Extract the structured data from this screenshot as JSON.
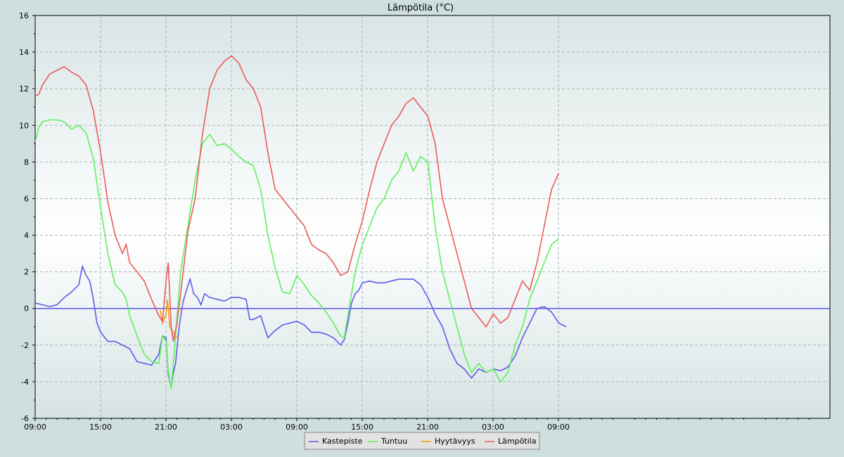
{
  "chart_data": {
    "type": "line",
    "title": "Lämpötila (°C)",
    "xlabel": "",
    "ylabel": "",
    "ylim": [
      -6,
      16
    ],
    "y_ticks": [
      -6,
      -4,
      -2,
      0,
      2,
      4,
      6,
      8,
      10,
      12,
      14,
      16
    ],
    "x_range_hours": [
      0,
      48.7
    ],
    "x_tick_labels": [
      {
        "hour": 0,
        "label": "09:00"
      },
      {
        "hour": 6,
        "label": "15:00"
      },
      {
        "hour": 12,
        "label": "21:00"
      },
      {
        "hour": 18,
        "label": "03:00"
      },
      {
        "hour": 24,
        "label": "09:00"
      },
      {
        "hour": 30,
        "label": "15:00"
      },
      {
        "hour": 36,
        "label": "21:00"
      },
      {
        "hour": 42,
        "label": "03:00"
      },
      {
        "hour": 48,
        "label": "09:00"
      }
    ],
    "grid": true,
    "reference_line": {
      "y": 0,
      "color": "#5555ee"
    },
    "legend_position": "bottom-center",
    "series": [
      {
        "name": "Kastepiste",
        "color": "#5b5bea",
        "points": [
          [
            0,
            0.3
          ],
          [
            1,
            0.2
          ],
          [
            2,
            0.1
          ],
          [
            3,
            0.2
          ],
          [
            4,
            0.6
          ],
          [
            5,
            0.9
          ],
          [
            6,
            1.3
          ],
          [
            6.5,
            2.3
          ],
          [
            7,
            1.8
          ],
          [
            7.5,
            1.5
          ],
          [
            8,
            0.5
          ],
          [
            8.5,
            -0.8
          ],
          [
            9,
            -1.3
          ],
          [
            10,
            -1.8
          ],
          [
            11,
            -1.8
          ],
          [
            12,
            -2.0
          ],
          [
            13,
            -2.2
          ],
          [
            14,
            -2.9
          ],
          [
            15,
            -3.0
          ],
          [
            16,
            -3.1
          ],
          [
            17,
            -2.5
          ],
          [
            17.5,
            -1.5
          ],
          [
            18,
            -1.6
          ],
          [
            18.3,
            -3.6
          ],
          [
            18.7,
            -4.3
          ],
          [
            19,
            -3.5
          ],
          [
            19.3,
            -3.0
          ],
          [
            19.8,
            -1.0
          ],
          [
            20.3,
            0.3
          ],
          [
            20.8,
            1.0
          ],
          [
            21.3,
            1.6
          ],
          [
            21.8,
            0.8
          ],
          [
            22.3,
            0.6
          ],
          [
            22.8,
            0.2
          ],
          [
            23.3,
            0.8
          ],
          [
            24,
            0.6
          ],
          [
            25,
            0.5
          ],
          [
            26,
            0.4
          ],
          [
            27,
            0.6
          ],
          [
            28,
            0.6
          ],
          [
            29,
            0.5
          ],
          [
            29.5,
            -0.6
          ],
          [
            30,
            -0.6
          ],
          [
            31,
            -0.4
          ],
          [
            32,
            -1.6
          ],
          [
            33,
            -1.2
          ],
          [
            34,
            -0.9
          ],
          [
            35,
            -0.8
          ],
          [
            36,
            -0.7
          ],
          [
            37,
            -0.9
          ],
          [
            38,
            -1.3
          ],
          [
            39,
            -1.3
          ],
          [
            40,
            -1.4
          ],
          [
            41,
            -1.6
          ],
          [
            42,
            -2.0
          ],
          [
            42.5,
            -1.7
          ],
          [
            43,
            -0.8
          ],
          [
            43.5,
            0.3
          ],
          [
            44,
            0.8
          ],
          [
            44.5,
            1.0
          ],
          [
            45,
            1.4
          ],
          [
            46,
            1.5
          ],
          [
            47,
            1.4
          ],
          [
            48,
            1.4
          ],
          [
            49,
            1.5
          ],
          [
            50,
            1.6
          ],
          [
            51,
            1.6
          ],
          [
            52,
            1.6
          ],
          [
            53,
            1.3
          ],
          [
            54,
            0.6
          ],
          [
            55,
            -0.3
          ],
          [
            56,
            -1.0
          ],
          [
            57,
            -2.2
          ],
          [
            58,
            -3.0
          ],
          [
            59,
            -3.3
          ],
          [
            60,
            -3.8
          ],
          [
            61,
            -3.3
          ],
          [
            62,
            -3.5
          ],
          [
            63,
            -3.3
          ],
          [
            64,
            -3.4
          ],
          [
            65,
            -3.2
          ],
          [
            66,
            -2.6
          ],
          [
            67,
            -1.6
          ],
          [
            68,
            -0.8
          ],
          [
            69,
            0.0
          ],
          [
            70,
            0.1
          ],
          [
            71,
            -0.2
          ],
          [
            72,
            -0.8
          ],
          [
            73,
            -1.0
          ]
        ]
      },
      {
        "name": "Tuntuu",
        "color": "#5ef05e",
        "points": [
          [
            0,
            9.1
          ],
          [
            0.5,
            9.9
          ],
          [
            1,
            10.2
          ],
          [
            2,
            10.3
          ],
          [
            3,
            10.3
          ],
          [
            4,
            10.2
          ],
          [
            5,
            9.8
          ],
          [
            6,
            10.0
          ],
          [
            7,
            9.6
          ],
          [
            8,
            8.2
          ],
          [
            9,
            5.5
          ],
          [
            10,
            3.0
          ],
          [
            11,
            1.3
          ],
          [
            12,
            0.9
          ],
          [
            12.5,
            0.5
          ],
          [
            13,
            -0.4
          ],
          [
            14,
            -1.5
          ],
          [
            15,
            -2.5
          ],
          [
            16,
            -2.9
          ],
          [
            17,
            -3.0
          ],
          [
            17.5,
            -1.5
          ],
          [
            18,
            -1.8
          ],
          [
            18.3,
            -3.4
          ],
          [
            18.7,
            -4.4
          ],
          [
            19,
            -3.0
          ],
          [
            19.5,
            -0.5
          ],
          [
            20,
            2.0
          ],
          [
            21,
            4.5
          ],
          [
            22,
            7.0
          ],
          [
            23,
            9.0
          ],
          [
            24,
            9.5
          ],
          [
            25,
            8.9
          ],
          [
            26,
            9.0
          ],
          [
            27,
            8.7
          ],
          [
            28,
            8.3
          ],
          [
            29,
            8.0
          ],
          [
            30,
            7.8
          ],
          [
            31,
            6.5
          ],
          [
            32,
            4.0
          ],
          [
            33,
            2.2
          ],
          [
            34,
            0.9
          ],
          [
            35,
            0.8
          ],
          [
            36,
            1.8
          ],
          [
            37,
            1.3
          ],
          [
            38,
            0.7
          ],
          [
            39,
            0.3
          ],
          [
            40,
            -0.2
          ],
          [
            41,
            -0.8
          ],
          [
            42,
            -1.5
          ],
          [
            42.5,
            -1.6
          ],
          [
            43,
            -0.4
          ],
          [
            44,
            2.0
          ],
          [
            45,
            3.5
          ],
          [
            46,
            4.5
          ],
          [
            47,
            5.5
          ],
          [
            48,
            6.0
          ],
          [
            49,
            7.0
          ],
          [
            50,
            7.5
          ],
          [
            51,
            8.5
          ],
          [
            52,
            7.5
          ],
          [
            53,
            8.3
          ],
          [
            54,
            8.0
          ],
          [
            55,
            4.5
          ],
          [
            56,
            2.0
          ],
          [
            57,
            0.5
          ],
          [
            58,
            -1.0
          ],
          [
            59,
            -2.5
          ],
          [
            60,
            -3.5
          ],
          [
            61,
            -3.0
          ],
          [
            62,
            -3.5
          ],
          [
            63,
            -3.3
          ],
          [
            64,
            -4.0
          ],
          [
            65,
            -3.5
          ],
          [
            66,
            -2.0
          ],
          [
            67,
            -1.0
          ],
          [
            68,
            0.5
          ],
          [
            69,
            1.5
          ],
          [
            70,
            2.5
          ],
          [
            71,
            3.5
          ],
          [
            72,
            3.8
          ]
        ]
      },
      {
        "name": "Hyytävyys",
        "color": "#f5a014",
        "points": [
          [
            17.2,
            -0.1
          ],
          [
            17.5,
            -0.8
          ],
          [
            18,
            -0.3
          ],
          [
            18.2,
            0.5
          ],
          [
            18.5,
            -1.0
          ],
          [
            19,
            -1.3
          ],
          [
            19.5,
            -1.6
          ]
        ]
      },
      {
        "name": "Lämpötila",
        "color": "#ea5b5b",
        "points": [
          [
            0,
            11.6
          ],
          [
            0.5,
            11.7
          ],
          [
            1,
            12.2
          ],
          [
            2,
            12.8
          ],
          [
            3,
            13.0
          ],
          [
            4,
            13.2
          ],
          [
            5,
            12.9
          ],
          [
            6,
            12.7
          ],
          [
            7,
            12.2
          ],
          [
            8,
            10.8
          ],
          [
            9,
            8.5
          ],
          [
            10,
            5.8
          ],
          [
            11,
            4.0
          ],
          [
            12,
            3.0
          ],
          [
            12.5,
            3.5
          ],
          [
            13,
            2.5
          ],
          [
            14,
            2.0
          ],
          [
            15,
            1.5
          ],
          [
            16,
            0.5
          ],
          [
            17,
            -0.4
          ],
          [
            17.5,
            -0.7
          ],
          [
            18,
            1.5
          ],
          [
            18.3,
            2.5
          ],
          [
            18.7,
            -1.0
          ],
          [
            19,
            -1.8
          ],
          [
            19.5,
            -0.8
          ],
          [
            20,
            0.8
          ],
          [
            21,
            4.2
          ],
          [
            22,
            6.0
          ],
          [
            23,
            9.5
          ],
          [
            24,
            12.0
          ],
          [
            25,
            13.0
          ],
          [
            26,
            13.5
          ],
          [
            27,
            13.8
          ],
          [
            28,
            13.4
          ],
          [
            29,
            12.5
          ],
          [
            30,
            12.0
          ],
          [
            31,
            11.0
          ],
          [
            32,
            8.5
          ],
          [
            33,
            6.5
          ],
          [
            34,
            6.0
          ],
          [
            35,
            5.5
          ],
          [
            36,
            5.0
          ],
          [
            37,
            4.5
          ],
          [
            38,
            3.5
          ],
          [
            39,
            3.2
          ],
          [
            40,
            3.0
          ],
          [
            41,
            2.5
          ],
          [
            42,
            1.8
          ],
          [
            42.5,
            1.9
          ],
          [
            43,
            2.0
          ],
          [
            44,
            3.5
          ],
          [
            45,
            4.8
          ],
          [
            46,
            6.5
          ],
          [
            47,
            8.0
          ],
          [
            48,
            9.0
          ],
          [
            49,
            10.0
          ],
          [
            50,
            10.5
          ],
          [
            51,
            11.2
          ],
          [
            52,
            11.5
          ],
          [
            53,
            11.0
          ],
          [
            54,
            10.5
          ],
          [
            55,
            9.0
          ],
          [
            56,
            6.0
          ],
          [
            57,
            4.5
          ],
          [
            58,
            3.0
          ],
          [
            59,
            1.5
          ],
          [
            60,
            0.0
          ],
          [
            61,
            -0.5
          ],
          [
            62,
            -1.0
          ],
          [
            63,
            -0.3
          ],
          [
            64,
            -0.8
          ],
          [
            65,
            -0.5
          ],
          [
            66,
            0.5
          ],
          [
            67,
            1.5
          ],
          [
            68,
            1.0
          ],
          [
            69,
            2.5
          ],
          [
            70,
            4.5
          ],
          [
            71,
            6.5
          ],
          [
            72,
            7.4
          ]
        ]
      }
    ]
  }
}
